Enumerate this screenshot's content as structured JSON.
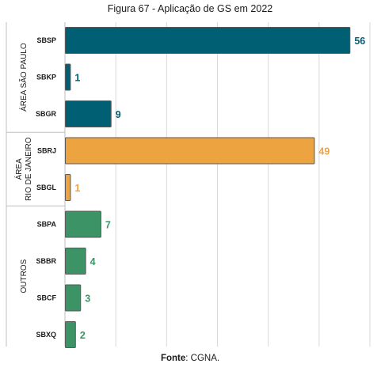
{
  "chart_data": {
    "type": "bar",
    "orientation": "horizontal",
    "title": "Figura 67 - Aplicação de GS em 2022",
    "categories": [
      "SBSP",
      "SBKP",
      "SBGR",
      "SBRJ",
      "SBGL",
      "SBPA",
      "SBBR",
      "SBCF",
      "SBXQ"
    ],
    "values": [
      56,
      1,
      9,
      49,
      1,
      7,
      4,
      3,
      2
    ],
    "groups": [
      {
        "label_lines": [
          "ÁREA SÃO PAULO"
        ],
        "categories": [
          "SBSP",
          "SBKP",
          "SBGR"
        ],
        "color": "#005f73"
      },
      {
        "label_lines": [
          "ÁREA",
          "RIO DE JANEIRO"
        ],
        "categories": [
          "SBRJ",
          "SBGL"
        ],
        "color": "#eda33f"
      },
      {
        "label_lines": [
          "OUTROS"
        ],
        "categories": [
          "SBPA",
          "SBBR",
          "SBCF",
          "SBXQ"
        ],
        "color": "#3b9366"
      }
    ],
    "xlim": [
      0,
      60
    ],
    "grid": true,
    "legend": "none"
  },
  "source": {
    "label": "Fonte",
    "text": ": CGNA."
  }
}
